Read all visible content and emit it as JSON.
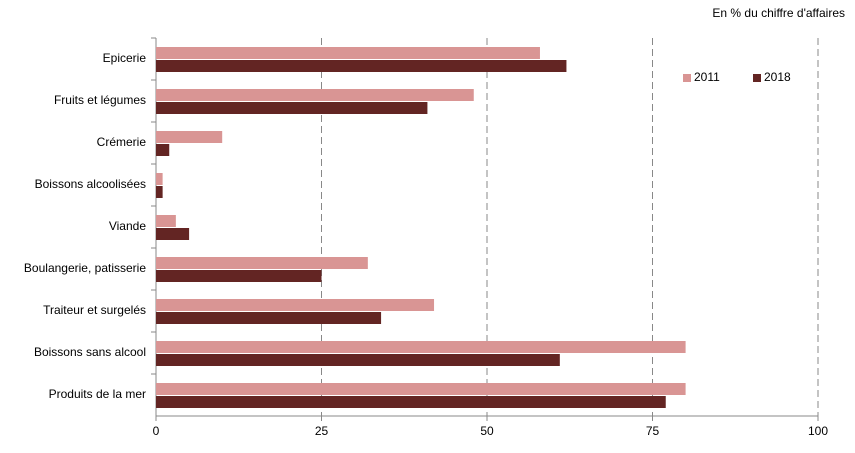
{
  "chart_data": {
    "type": "hbar",
    "subtitle": "En % du chiffre d'affaires",
    "categories": [
      "Epicerie",
      "Fruits et légumes",
      "Crémerie",
      "Boissons alcoolisées",
      "Viande",
      "Boulangerie, patisserie",
      "Traiteur et surgelés",
      "Boissons sans alcool",
      "Produits de la mer"
    ],
    "series": [
      {
        "name": "2011",
        "color": "#d99594",
        "values": [
          58,
          48,
          10,
          1,
          3,
          32,
          42,
          80,
          80
        ]
      },
      {
        "name": "2018",
        "color": "#632523",
        "values": [
          62,
          41,
          2,
          1,
          5,
          25,
          34,
          61,
          77
        ]
      }
    ],
    "xlim": [
      0,
      100
    ],
    "xticks": [
      0,
      25,
      50,
      75,
      100
    ],
    "grid": true,
    "legend": "top-right"
  }
}
